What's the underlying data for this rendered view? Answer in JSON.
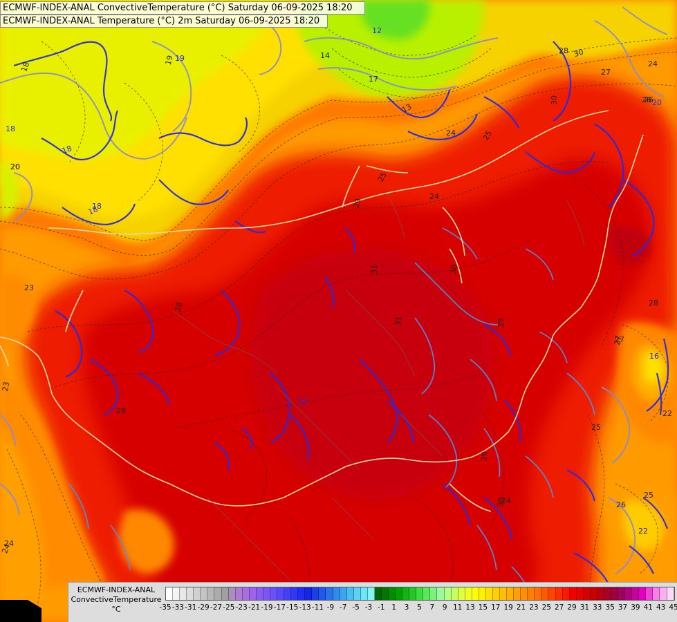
{
  "titles": {
    "line1": "ECMWF-INDEX-ANAL ConvectiveTemperature (°C) Saturday 06-09-2025 18:20",
    "line2": "ECMWF-INDEX-ANAL Temperature (°C) 2m Saturday 06-09-2025 18:20"
  },
  "legend": {
    "model": "ECMWF-INDEX-ANAL",
    "variable": "ConvectiveTemperature",
    "unit": "°C",
    "tick_labels": [
      "-35",
      "-33",
      "-31",
      "-29",
      "-27",
      "-25",
      "-23",
      "-21",
      "-19",
      "-17",
      "-15",
      "-13",
      "-11",
      "-9",
      "-7",
      "-5",
      "-3",
      "-1",
      "1",
      "3",
      "5",
      "7",
      "9",
      "11",
      "13",
      "15",
      "17",
      "19",
      "21",
      "23",
      "25",
      "27",
      "29",
      "31",
      "33",
      "35",
      "37",
      "39",
      "41",
      "43",
      "45"
    ],
    "colors": [
      "#ffffff",
      "#f4f4f4",
      "#e8e8e8",
      "#dcdcdc",
      "#d0d0d0",
      "#c4c4c4",
      "#b8b8b8",
      "#acacac",
      "#a0a0a0",
      "#a98fbf",
      "#b07ad2",
      "#a76ee0",
      "#9b63ea",
      "#8c5bf0",
      "#7c55f5",
      "#6a50f7",
      "#5848f8",
      "#4440f6",
      "#2f38f2",
      "#1f2ef0",
      "#1624e8",
      "#1a3fe6",
      "#2058e8",
      "#2872ea",
      "#308cec",
      "#3aa6ee",
      "#48bef0",
      "#5ad4f2",
      "#6ee6f4",
      "#86f2f6",
      "#006400",
      "#007800",
      "#008c00",
      "#00a000",
      "#12b412",
      "#24c824",
      "#3cdc3c",
      "#58e858",
      "#7cf07c",
      "#9cf89c",
      "#b4ff80",
      "#c8ff60",
      "#dcff40",
      "#f0ff20",
      "#ffff00",
      "#fff000",
      "#ffe000",
      "#ffd000",
      "#ffc000",
      "#ffb000",
      "#ffa000",
      "#ff9000",
      "#ff8000",
      "#ff7000",
      "#ff5a00",
      "#ff4400",
      "#ff2e00",
      "#ff1800",
      "#f50000",
      "#e60000",
      "#d70000",
      "#c80000",
      "#b90010",
      "#aa0028",
      "#a00040",
      "#a00060",
      "#b00080",
      "#c800a0",
      "#e000c0",
      "#f040d8",
      "#f880e8",
      "#fcb0f0",
      "#ffd8f8"
    ]
  },
  "map_labels": [
    {
      "text": "18",
      "kind": "thin"
    },
    {
      "text": "19",
      "kind": "thin"
    },
    {
      "text": "20",
      "kind": "thin"
    },
    {
      "text": "14",
      "kind": "thin"
    },
    {
      "text": "17",
      "kind": "thin"
    },
    {
      "text": "13",
      "kind": "thin"
    },
    {
      "text": "18",
      "kind": "blue"
    },
    {
      "text": "18",
      "kind": "blue"
    },
    {
      "text": "20",
      "kind": "thin"
    },
    {
      "text": "23",
      "kind": "thin"
    },
    {
      "text": "25",
      "kind": "thin"
    },
    {
      "text": "28",
      "kind": "thin"
    },
    {
      "text": "29",
      "kind": "thin"
    },
    {
      "text": "31",
      "kind": "thin"
    },
    {
      "text": "31",
      "kind": "thin"
    },
    {
      "text": "30",
      "kind": "thin"
    },
    {
      "text": "29",
      "kind": "thin"
    },
    {
      "text": "29",
      "kind": "thin"
    },
    {
      "text": "30",
      "kind": "thin"
    },
    {
      "text": "28",
      "kind": "thin"
    },
    {
      "text": "27",
      "kind": "thin"
    },
    {
      "text": "26",
      "kind": "thin"
    },
    {
      "text": "24",
      "kind": "thin"
    },
    {
      "text": "24",
      "kind": "thin"
    },
    {
      "text": "25",
      "kind": "thin"
    },
    {
      "text": "30",
      "kind": "thin"
    },
    {
      "text": "28",
      "kind": "thin"
    },
    {
      "text": "27",
      "kind": "thin"
    },
    {
      "text": "26",
      "kind": "thin"
    },
    {
      "text": "20",
      "kind": "blue"
    },
    {
      "text": "24",
      "kind": "thin"
    },
    {
      "text": "25",
      "kind": "thin"
    },
    {
      "text": "22",
      "kind": "thin"
    },
    {
      "text": "23",
      "kind": "thin"
    },
    {
      "text": "24",
      "kind": "thin"
    },
    {
      "text": "20",
      "kind": "blue"
    },
    {
      "text": "16",
      "kind": "blue"
    },
    {
      "text": "22",
      "kind": "thin"
    },
    {
      "text": "27",
      "kind": "thin"
    },
    {
      "text": "30",
      "kind": "thin"
    },
    {
      "text": "25",
      "kind": "thin"
    },
    {
      "text": "26",
      "kind": "thin"
    },
    {
      "text": "28",
      "kind": "thin"
    },
    {
      "text": "24",
      "kind": "thin"
    },
    {
      "text": "18",
      "kind": "blue"
    },
    {
      "text": "18",
      "kind": "blue"
    },
    {
      "text": "19",
      "kind": "blue"
    },
    {
      "text": "24",
      "kind": "thin"
    },
    {
      "text": "12",
      "kind": "blue"
    }
  ]
}
